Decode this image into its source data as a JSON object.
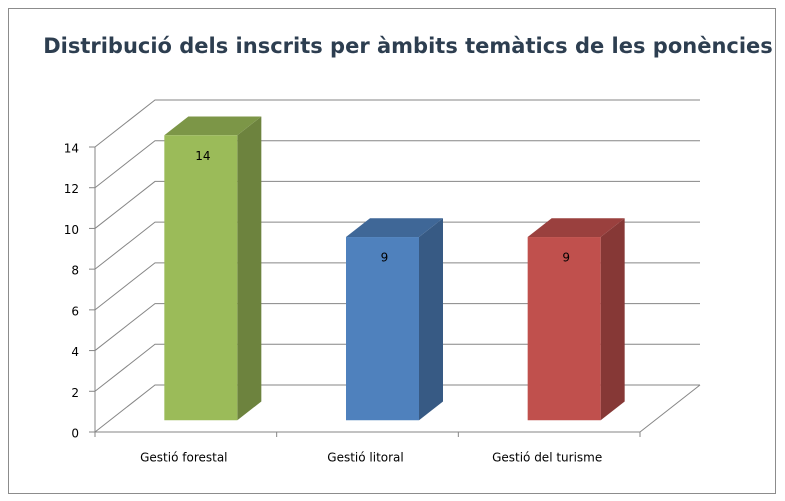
{
  "chart_data": {
    "type": "bar3d",
    "title": "Distribució dels inscrits per àmbits temàtics de les ponències",
    "categories": [
      "Gestió forestal",
      "Gestió litoral",
      "Gestió del turisme"
    ],
    "values": [
      14,
      9,
      9
    ],
    "colors": [
      "#9bbb59",
      "#4f81bd",
      "#c0504d"
    ],
    "ylim": [
      0,
      14
    ],
    "yticks": [
      0,
      2,
      4,
      6,
      8,
      10,
      12,
      14
    ],
    "grid": true
  }
}
